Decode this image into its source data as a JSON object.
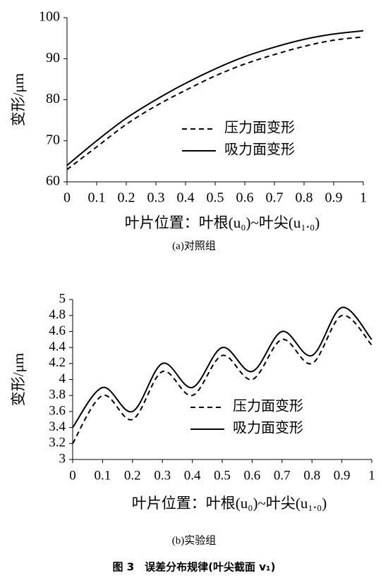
{
  "chart_data": [
    {
      "type": "line",
      "caption": "(a)对照组",
      "ylabel": "变形/μm",
      "xlabel": "叶片位置：叶根(u₀)~叶尖(u₁.₀)",
      "x": [
        0,
        0.1,
        0.2,
        0.3,
        0.4,
        0.5,
        0.6,
        0.7,
        0.8,
        0.9,
        1
      ],
      "series": [
        {
          "name": "压力面变形",
          "color": "#000000",
          "dash": true,
          "values": [
            63,
            68.5,
            74,
            78.5,
            82.3,
            85.8,
            88.7,
            91,
            93,
            94.5,
            95.3
          ]
        },
        {
          "name": "吸力面变形",
          "color": "#000000",
          "dash": false,
          "values": [
            64,
            70,
            75.5,
            80,
            84,
            87.5,
            90.5,
            92.8,
            94.7,
            96,
            96.8
          ]
        }
      ],
      "xlim": [
        0,
        1
      ],
      "xticks": [
        0,
        0.1,
        0.2,
        0.3,
        0.4,
        0.5,
        0.6,
        0.7,
        0.8,
        0.9,
        1
      ],
      "ylim": [
        60,
        100
      ],
      "yticks": [
        60,
        70,
        80,
        90,
        100
      ],
      "grid": false
    },
    {
      "type": "line",
      "caption": "(b)实验组",
      "ylabel": "变形/μm",
      "xlabel": "叶片位置：叶根(u₀)~叶尖(u₁.₀)",
      "x": [
        0,
        0.1,
        0.2,
        0.3,
        0.4,
        0.5,
        0.6,
        0.7,
        0.8,
        0.9,
        1
      ],
      "series": [
        {
          "name": "压力面变形",
          "color": "#000000",
          "dash": true,
          "values": [
            3.2,
            3.8,
            3.5,
            4.1,
            3.8,
            4.3,
            4.0,
            4.5,
            4.2,
            4.8,
            4.43
          ]
        },
        {
          "name": "吸力面变形",
          "color": "#000000",
          "dash": false,
          "values": [
            3.4,
            3.9,
            3.6,
            4.2,
            3.9,
            4.4,
            4.1,
            4.6,
            4.3,
            4.9,
            4.5
          ]
        }
      ],
      "xlim": [
        0,
        1
      ],
      "xticks": [
        0,
        0.1,
        0.2,
        0.3,
        0.4,
        0.5,
        0.6,
        0.7,
        0.8,
        0.9,
        1
      ],
      "ylim": [
        3,
        5
      ],
      "yticks": [
        3,
        3.2,
        3.4,
        3.6,
        3.8,
        4,
        4.2,
        4.4,
        4.6,
        4.8,
        5
      ],
      "grid": false
    }
  ],
  "figure_caption": "图 3　误差分布规律(叶尖截面 v₁)"
}
